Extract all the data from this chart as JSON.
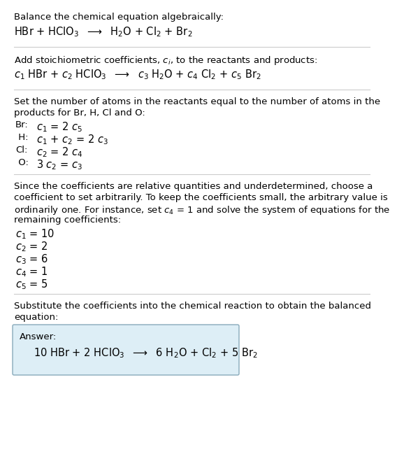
{
  "bg_color": "#ffffff",
  "text_color": "#000000",
  "box_facecolor": "#ddeef6",
  "box_edgecolor": "#88aabb",
  "section1_title": "Balance the chemical equation algebraically:",
  "section1_eq": "HBr + HClO$_3$  $\\longrightarrow$  H$_2$O + Cl$_2$ + Br$_2$",
  "section2_title": "Add stoichiometric coefficients, $c_i$, to the reactants and products:",
  "section2_eq": "$c_1$ HBr + $c_2$ HClO$_3$  $\\longrightarrow$  $c_3$ H$_2$O + $c_4$ Cl$_2$ + $c_5$ Br$_2$",
  "section3_title_line1": "Set the number of atoms in the reactants equal to the number of atoms in the",
  "section3_title_line2": "products for Br, H, Cl and O:",
  "section3_lines": [
    [
      "Br:",
      "$c_1$ = 2 $c_5$"
    ],
    [
      " H:",
      "$c_1$ + $c_2$ = 2 $c_3$"
    ],
    [
      "Cl:",
      "$c_2$ = 2 $c_4$"
    ],
    [
      " O:",
      "3 $c_2$ = $c_3$"
    ]
  ],
  "section4_title_lines": [
    "Since the coefficients are relative quantities and underdetermined, choose a",
    "coefficient to set arbitrarily. To keep the coefficients small, the arbitrary value is",
    "ordinarily one. For instance, set $c_4$ = 1 and solve the system of equations for the",
    "remaining coefficients:"
  ],
  "section4_lines": [
    "$c_1$ = 10",
    "$c_2$ = 2",
    "$c_3$ = 6",
    "$c_4$ = 1",
    "$c_5$ = 5"
  ],
  "section5_title_line1": "Substitute the coefficients into the chemical reaction to obtain the balanced",
  "section5_title_line2": "equation:",
  "answer_label": "Answer:",
  "answer_eq": "10 HBr + 2 HClO$_3$  $\\longrightarrow$  6 H$_2$O + Cl$_2$ + 5 Br$_2$",
  "fs": 9.5,
  "fs_eq": 10.5
}
